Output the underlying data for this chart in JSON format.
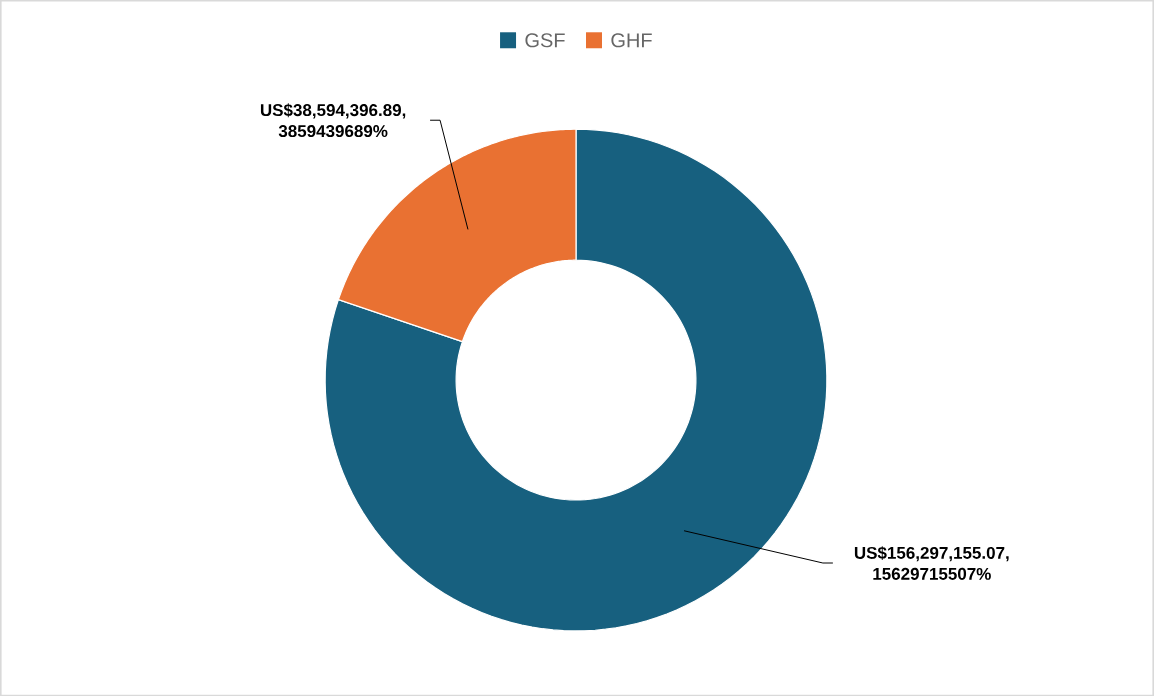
{
  "chart_data": {
    "type": "donut",
    "categories": [
      "GSF",
      "GHF"
    ],
    "values": [
      156297155.07,
      38594396.89
    ],
    "colors": [
      "#17607f",
      "#e97132"
    ],
    "value_labels": [
      "US$156,297,155.07, 15629715507%",
      "US$38,594,396.89, 3859439689%"
    ],
    "legend": "top"
  }
}
